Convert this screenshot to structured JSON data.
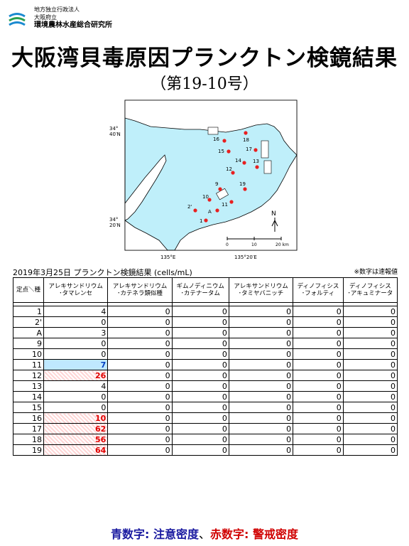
{
  "org": {
    "line1": "地方独立行政法人",
    "line2": "大阪府立",
    "line3": "環境農林水産総合研究所"
  },
  "title": "大阪湾貝毒原因プランクトン検鏡結果",
  "subtitle": "（第19-10号）",
  "map": {
    "lat_top": "34°\n40′N",
    "lat_bottom": "34°\n20′N",
    "lon_left": "135°E",
    "lon_right": "135°20′E",
    "north": "N",
    "scale_0": "0",
    "scale_10": "10",
    "scale_20": "20 km",
    "stations": [
      "16",
      "18",
      "15",
      "17",
      "14",
      "13",
      "12",
      "9",
      "19",
      "10",
      "11",
      "2'",
      "A",
      "1"
    ]
  },
  "caption": "2019年3月25日  プランクトン検鏡結果 (cells/mL)",
  "note": "※数字は速報値",
  "table": {
    "corner": "定点＼種",
    "headers": [
      [
        "アレキサンドリウム",
        "･タマレンセ"
      ],
      [
        "アレキサンドリウム",
        "･カテネラ類似種"
      ],
      [
        "ギムノディニウム",
        "･カテナータム"
      ],
      [
        "アレキサンドリウム",
        "･タミヤバニッチ"
      ],
      [
        "ディノフィシス",
        "･フォルティ"
      ],
      [
        "ディノフィシス",
        "･アキュミナータ"
      ]
    ],
    "rows": [
      {
        "st": "1",
        "v": [
          "4",
          "0",
          "0",
          "0",
          "0",
          "0"
        ],
        "hl": ""
      },
      {
        "st": "2'",
        "v": [
          "0",
          "0",
          "0",
          "0",
          "0",
          "0"
        ],
        "hl": ""
      },
      {
        "st": "A",
        "v": [
          "3",
          "0",
          "0",
          "0",
          "0",
          "0"
        ],
        "hl": ""
      },
      {
        "st": "9",
        "v": [
          "0",
          "0",
          "0",
          "0",
          "0",
          "0"
        ],
        "hl": ""
      },
      {
        "st": "10",
        "v": [
          "0",
          "0",
          "0",
          "0",
          "0",
          "0"
        ],
        "hl": ""
      },
      {
        "st": "11",
        "v": [
          "7",
          "0",
          "0",
          "0",
          "0",
          "0"
        ],
        "hl": "caution"
      },
      {
        "st": "12",
        "v": [
          "26",
          "0",
          "0",
          "0",
          "0",
          "0"
        ],
        "hl": "warn"
      },
      {
        "st": "13",
        "v": [
          "4",
          "0",
          "0",
          "0",
          "0",
          "0"
        ],
        "hl": ""
      },
      {
        "st": "14",
        "v": [
          "0",
          "0",
          "0",
          "0",
          "0",
          "0"
        ],
        "hl": ""
      },
      {
        "st": "15",
        "v": [
          "0",
          "0",
          "0",
          "0",
          "0",
          "0"
        ],
        "hl": ""
      },
      {
        "st": "16",
        "v": [
          "10",
          "0",
          "0",
          "0",
          "0",
          "0"
        ],
        "hl": "warn"
      },
      {
        "st": "17",
        "v": [
          "62",
          "0",
          "0",
          "0",
          "0",
          "0"
        ],
        "hl": "warn"
      },
      {
        "st": "18",
        "v": [
          "56",
          "0",
          "0",
          "0",
          "0",
          "0"
        ],
        "hl": "warn"
      },
      {
        "st": "19",
        "v": [
          "64",
          "0",
          "0",
          "0",
          "0",
          "0"
        ],
        "hl": "warn"
      }
    ]
  },
  "legend": {
    "blue_label": "青数字",
    "blue_text": ": 注意密度",
    "sep": "、",
    "red_label": "赤数字",
    "red_text": ": 警戒密度"
  },
  "colors": {
    "sea": "#bfeffa",
    "land": "#ffffff",
    "station": "#e82020",
    "caution": "#0040c0",
    "warn": "#e00000"
  }
}
